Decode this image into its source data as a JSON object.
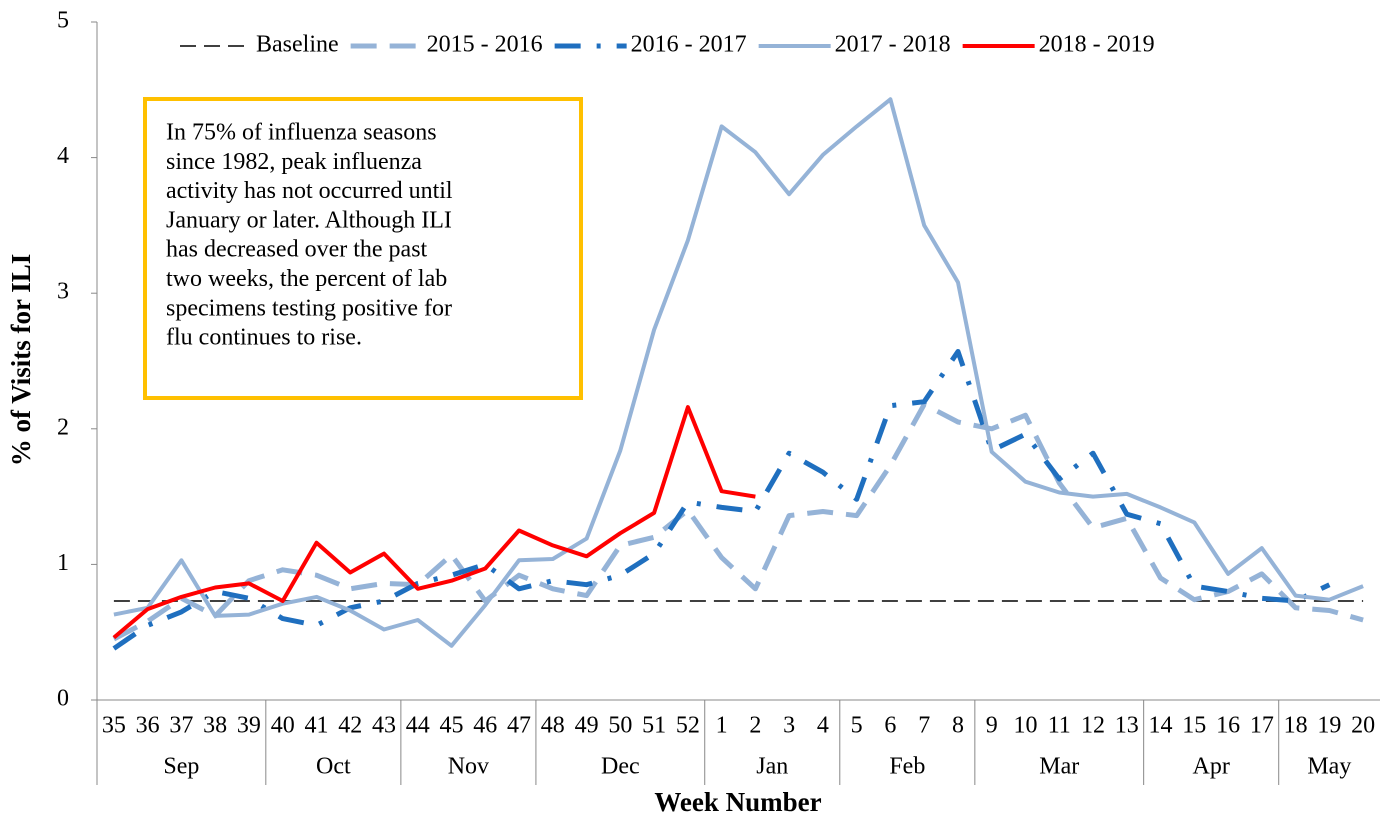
{
  "chart_data": {
    "type": "line",
    "xlabel": "Week Number",
    "ylabel": "% of Visits for ILI",
    "annotation": [
      "In 75% of influenza seasons",
      "since 1982, peak influenza",
      "activity has not occurred until",
      "January or later. Although ILI",
      "has decreased over the past",
      "two weeks, the percent of lab",
      "specimens testing positive for",
      "flu continues to rise."
    ],
    "annotation_border": "#FFC000",
    "categories": [
      "35",
      "36",
      "37",
      "38",
      "39",
      "40",
      "41",
      "42",
      "43",
      "44",
      "45",
      "46",
      "47",
      "48",
      "49",
      "50",
      "51",
      "52",
      "1",
      "2",
      "3",
      "4",
      "5",
      "6",
      "7",
      "8",
      "9",
      "10",
      "11",
      "12",
      "13",
      "14",
      "15",
      "16",
      "17",
      "18",
      "19",
      "20"
    ],
    "months": [
      "Sep",
      "Sep",
      "Sep",
      "Sep",
      "Sep",
      "Oct",
      "Oct",
      "Oct",
      "Oct",
      "Nov",
      "Nov",
      "Nov",
      "Nov",
      "Dec",
      "Dec",
      "Dec",
      "Dec",
      "Dec",
      "Jan",
      "Jan",
      "Jan",
      "Jan",
      "Feb",
      "Feb",
      "Feb",
      "Feb",
      "Mar",
      "Mar",
      "Mar",
      "Mar",
      "Mar",
      "Apr",
      "Apr",
      "Apr",
      "Apr",
      "May",
      "May",
      "May"
    ],
    "ylim": [
      0,
      5
    ],
    "yticks": [
      0,
      1,
      2,
      3,
      4,
      5
    ],
    "grid": false,
    "legend": "top",
    "series": [
      {
        "name": "Baseline",
        "color": "#404040",
        "style": "thin-dash",
        "values": [
          0.73,
          0.73,
          0.73,
          0.73,
          0.73,
          0.73,
          0.73,
          0.73,
          0.73,
          0.73,
          0.73,
          0.73,
          0.73,
          0.73,
          0.73,
          0.73,
          0.73,
          0.73,
          0.73,
          0.73,
          0.73,
          0.73,
          0.73,
          0.73,
          0.73,
          0.73,
          0.73,
          0.73,
          0.73,
          0.73,
          0.73,
          0.73,
          0.73,
          0.73,
          0.73,
          0.73,
          0.73,
          0.73
        ]
      },
      {
        "name": "2015 - 2016",
        "color": "#95B3D7",
        "style": "dash",
        "values": [
          0.45,
          0.58,
          0.75,
          0.62,
          0.88,
          0.96,
          0.92,
          0.82,
          0.86,
          0.85,
          1.07,
          0.73,
          0.92,
          0.82,
          0.77,
          1.14,
          1.2,
          1.4,
          1.05,
          0.82,
          1.36,
          1.39,
          1.36,
          1.73,
          2.18,
          2.05,
          2.0,
          2.1,
          1.6,
          1.27,
          1.34,
          0.9,
          0.74,
          0.8,
          0.93,
          0.68,
          0.66,
          0.59
        ]
      },
      {
        "name": "2016 - 2017",
        "color": "#1F6FBF",
        "style": "dash-dot",
        "values": [
          0.38,
          0.55,
          0.65,
          0.8,
          0.75,
          0.6,
          0.55,
          0.68,
          0.73,
          0.86,
          0.92,
          1.0,
          0.82,
          0.88,
          0.85,
          0.92,
          1.08,
          1.46,
          1.42,
          1.39,
          1.82,
          1.68,
          1.48,
          2.17,
          2.2,
          2.57,
          1.84,
          1.96,
          1.63,
          1.82,
          1.37,
          1.3,
          0.84,
          0.8,
          0.75,
          0.73,
          0.85,
          null
        ]
      },
      {
        "name": "2017 - 2018",
        "color": "#95B3D7",
        "style": "solid",
        "values": [
          0.63,
          0.68,
          1.03,
          0.62,
          0.63,
          0.71,
          0.76,
          0.66,
          0.52,
          0.59,
          0.4,
          0.7,
          1.03,
          1.04,
          1.19,
          1.84,
          2.73,
          3.39,
          4.23,
          4.04,
          3.73,
          4.02,
          4.23,
          4.43,
          3.5,
          3.08,
          1.83,
          1.61,
          1.53,
          1.5,
          1.52,
          1.42,
          1.31,
          0.93,
          1.12,
          0.77,
          0.74,
          0.84
        ]
      },
      {
        "name": "2018 - 2019",
        "color": "#FF0000",
        "style": "solid",
        "values": [
          0.46,
          0.67,
          0.76,
          0.83,
          0.86,
          0.73,
          1.16,
          0.94,
          1.08,
          0.82,
          0.88,
          0.97,
          1.25,
          1.14,
          1.06,
          1.23,
          1.38,
          2.16,
          1.54,
          1.5,
          null,
          null,
          null,
          null,
          null,
          null,
          null,
          null,
          null,
          null,
          null,
          null,
          null,
          null,
          null,
          null,
          null,
          null
        ]
      }
    ]
  }
}
